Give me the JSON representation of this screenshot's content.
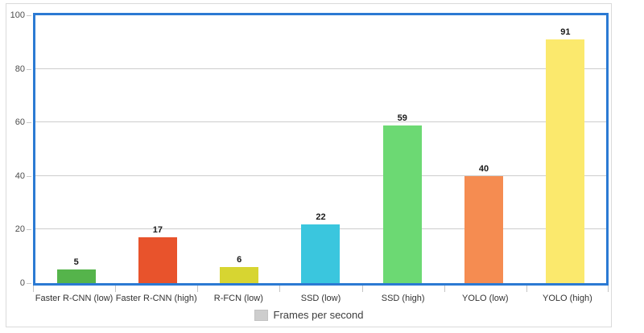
{
  "chart_data": {
    "type": "bar",
    "title": "",
    "categories": [
      "Faster R-CNN (low)",
      "Faster R-CNN (high)",
      "R-FCN (low)",
      "SSD (low)",
      "SSD (high)",
      "YOLO (low)",
      "YOLO (high)"
    ],
    "series": [
      {
        "name": "Frames per second",
        "values": [
          5,
          17,
          6,
          22,
          59,
          40,
          91
        ]
      }
    ],
    "bar_colors": [
      "#55b44b",
      "#e8532c",
      "#d7d531",
      "#3ac6de",
      "#6cd973",
      "#f58c51",
      "#fbe96d"
    ],
    "ylim": [
      0,
      100
    ],
    "yticks": [
      0,
      20,
      40,
      60,
      80,
      100
    ],
    "grid": true,
    "legend_position": "bottom"
  },
  "legend": {
    "label": "Frames per second",
    "swatch_color": "#cdcdcd"
  },
  "colors": {
    "plot_border": "#2b7ad3",
    "frame_border": "#dadada",
    "gridline": "#cccccc",
    "value_label": "#1a1a1a",
    "axis_label": "#4d4d4d",
    "category_label": "#333333"
  }
}
